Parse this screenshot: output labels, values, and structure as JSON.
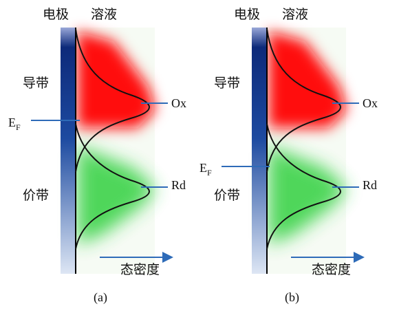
{
  "panels": [
    {
      "electrode_label": "电极",
      "solution_label": "溶液",
      "conduction_band_label": "导带",
      "valence_band_label": "价带",
      "fermi_level": {
        "symbol": "E",
        "subscript": "F"
      },
      "ox_label": "Ox",
      "rd_label": "Rd",
      "axis_label": "态密度",
      "caption": "(a)"
    },
    {
      "electrode_label": "电极",
      "solution_label": "溶液",
      "conduction_band_label": "导带",
      "valence_band_label": "价带",
      "fermi_level": {
        "symbol": "E",
        "subscript": "F"
      },
      "ox_label": "Ox",
      "rd_label": "Rd",
      "axis_label": "态密度",
      "caption": "(b)"
    }
  ]
}
